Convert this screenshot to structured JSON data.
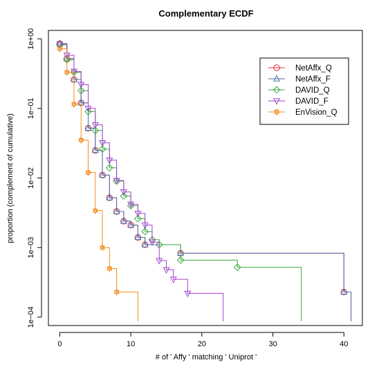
{
  "chart_data": {
    "type": "line",
    "title": "Complementary ECDF",
    "xlabel": "# of ' Affy ' matching ' Uniprot '",
    "ylabel": "proportion (complement of cumulative)",
    "xlim": [
      -1.6,
      42.6
    ],
    "ylim": [
      7.58e-05,
      1.32
    ],
    "y_scale": "log",
    "grid": false,
    "legend_position": "top-right",
    "x_ticks": [
      0,
      10,
      20,
      30,
      40
    ],
    "x_tick_labels": [
      "0",
      "10",
      "20",
      "30",
      "40"
    ],
    "y_ticks": [
      1,
      0.1,
      0.01,
      0.001,
      0.0001
    ],
    "y_tick_labels": [
      "1e+00",
      "1e−01",
      "1e−02",
      "1e−03",
      "1e−04"
    ],
    "series": [
      {
        "name": "NetAffx_Q",
        "color": "#e0303a",
        "marker": "circle",
        "end": 41,
        "points": [
          [
            0,
            0.85
          ],
          [
            1,
            0.52
          ],
          [
            2,
            0.26
          ],
          [
            3,
            0.12
          ],
          [
            4,
            0.052
          ],
          [
            5,
            0.025
          ],
          [
            6,
            0.011
          ],
          [
            7,
            0.0052
          ],
          [
            8,
            0.0033
          ],
          [
            9,
            0.0024
          ],
          [
            10,
            0.0021
          ],
          [
            11,
            0.0014
          ],
          [
            12,
            0.0011
          ],
          [
            17,
            0.00083
          ],
          [
            40,
            0.00023
          ]
        ]
      },
      {
        "name": "NetAffx_F",
        "color": "#4a72b0",
        "marker": "triangle-up",
        "end": 41,
        "points": [
          [
            0,
            0.85
          ],
          [
            1,
            0.52
          ],
          [
            2,
            0.26
          ],
          [
            3,
            0.12
          ],
          [
            4,
            0.052
          ],
          [
            5,
            0.025
          ],
          [
            6,
            0.011
          ],
          [
            7,
            0.0052
          ],
          [
            8,
            0.0033
          ],
          [
            9,
            0.0024
          ],
          [
            10,
            0.0021
          ],
          [
            11,
            0.0014
          ],
          [
            12,
            0.0011
          ],
          [
            17,
            0.00083
          ],
          [
            40,
            0.00023
          ]
        ]
      },
      {
        "name": "DAVID_Q",
        "color": "#3aa83a",
        "marker": "diamond",
        "end": 34,
        "points": [
          [
            0,
            0.82
          ],
          [
            1,
            0.5
          ],
          [
            2,
            0.33
          ],
          [
            3,
            0.18
          ],
          [
            4,
            0.09
          ],
          [
            5,
            0.048
          ],
          [
            6,
            0.026
          ],
          [
            7,
            0.014
          ],
          [
            8,
            0.009
          ],
          [
            9,
            0.0055
          ],
          [
            10,
            0.004
          ],
          [
            11,
            0.0026
          ],
          [
            12,
            0.0017
          ],
          [
            13,
            0.0013
          ],
          [
            14,
            0.0011
          ],
          [
            17,
            0.00066
          ],
          [
            25,
            0.00052
          ]
        ]
      },
      {
        "name": "DAVID_F",
        "color": "#a040d0",
        "marker": "triangle-down",
        "end": 23,
        "points": [
          [
            0,
            0.84
          ],
          [
            1,
            0.58
          ],
          [
            2,
            0.34
          ],
          [
            3,
            0.22
          ],
          [
            4,
            0.1
          ],
          [
            5,
            0.058
          ],
          [
            6,
            0.032
          ],
          [
            7,
            0.018
          ],
          [
            8,
            0.0092
          ],
          [
            9,
            0.0063
          ],
          [
            10,
            0.0042
          ],
          [
            11,
            0.0031
          ],
          [
            12,
            0.0021
          ],
          [
            13,
            0.0012
          ],
          [
            14,
            0.00065
          ],
          [
            15,
            0.00048
          ],
          [
            16,
            0.00035
          ],
          [
            18,
            0.00022
          ]
        ]
      },
      {
        "name": "EnVision_Q",
        "color": "#f28c1e",
        "marker": "star",
        "end": 11,
        "points": [
          [
            0,
            0.72
          ],
          [
            1,
            0.33
          ],
          [
            2,
            0.115
          ],
          [
            3,
            0.035
          ],
          [
            4,
            0.012
          ],
          [
            5,
            0.0034
          ],
          [
            6,
            0.001
          ],
          [
            7,
            0.0005
          ],
          [
            8,
            0.00023
          ]
        ]
      }
    ]
  }
}
